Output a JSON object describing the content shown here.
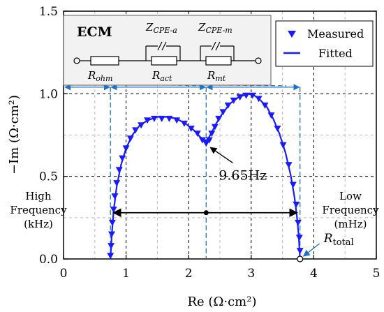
{
  "chart_data": {
    "type": "scatter",
    "xlabel": "Re (Ω·cm²)",
    "ylabel": "−Im (Ω·cm²)",
    "xlim": [
      0,
      5
    ],
    "ylim": [
      0,
      1.5
    ],
    "xticks": [
      0,
      1,
      2,
      3,
      4,
      5
    ],
    "yticks": [
      0.0,
      0.5,
      1.0,
      1.5
    ],
    "xtick_labels": [
      "0",
      "1",
      "2",
      "3",
      "4",
      "5"
    ],
    "ytick_labels": [
      "0.0",
      "0.5",
      "1.0",
      "1.5"
    ],
    "grid": true,
    "legend_position": "top-right",
    "series": [
      {
        "name": "Measured",
        "marker": "triangle-down",
        "color": "#1a1aff",
        "x": [
          0.75,
          0.76,
          0.77,
          0.78,
          0.8,
          0.82,
          0.85,
          0.89,
          0.94,
          1.0,
          1.07,
          1.15,
          1.24,
          1.34,
          1.45,
          1.57,
          1.69,
          1.81,
          1.93,
          2.04,
          2.14,
          2.22,
          2.28,
          2.33,
          2.37,
          2.42,
          2.48,
          2.55,
          2.63,
          2.72,
          2.82,
          2.92,
          3.02,
          3.12,
          3.22,
          3.32,
          3.42,
          3.51,
          3.6,
          3.67,
          3.72,
          3.75,
          3.77,
          3.78
        ],
        "y": [
          0.02,
          0.08,
          0.15,
          0.22,
          0.3,
          0.38,
          0.46,
          0.54,
          0.61,
          0.67,
          0.73,
          0.78,
          0.81,
          0.84,
          0.85,
          0.85,
          0.85,
          0.84,
          0.82,
          0.79,
          0.76,
          0.72,
          0.7,
          0.72,
          0.76,
          0.8,
          0.85,
          0.89,
          0.93,
          0.96,
          0.98,
          0.99,
          0.99,
          0.97,
          0.93,
          0.87,
          0.79,
          0.69,
          0.57,
          0.45,
          0.33,
          0.22,
          0.13,
          0.05
        ]
      },
      {
        "name": "Fitted",
        "line": "solid",
        "color": "#1a1aff",
        "x": [
          0.75,
          0.77,
          0.8,
          0.85,
          0.92,
          1.0,
          1.1,
          1.22,
          1.35,
          1.5,
          1.65,
          1.8,
          1.95,
          2.08,
          2.18,
          2.25,
          2.3,
          2.36,
          2.44,
          2.54,
          2.66,
          2.8,
          2.95,
          3.05,
          3.15,
          3.25,
          3.35,
          3.45,
          3.55,
          3.63,
          3.69,
          3.73,
          3.76,
          3.78
        ],
        "y": [
          0.0,
          0.14,
          0.29,
          0.44,
          0.57,
          0.67,
          0.75,
          0.81,
          0.84,
          0.86,
          0.86,
          0.85,
          0.82,
          0.78,
          0.74,
          0.72,
          0.72,
          0.76,
          0.82,
          0.88,
          0.94,
          0.98,
          1.0,
          0.99,
          0.96,
          0.92,
          0.85,
          0.76,
          0.64,
          0.51,
          0.38,
          0.26,
          0.14,
          0.0
        ]
      }
    ],
    "annotations": {
      "ecm_title": "ECM",
      "r_ohm": "R",
      "r_ohm_sub": "ohm",
      "r_act": "R",
      "r_act_sub": "act",
      "r_mt": "R",
      "r_mt_sub": "mt",
      "z_cpe_a": "Z",
      "z_cpe_a_sub": "CPE-a",
      "z_cpe_m": "Z",
      "z_cpe_m_sub": "CPE-m",
      "freq_marker": "9.65Hz",
      "high_freq": [
        "High",
        "Frequency",
        "(kHz)"
      ],
      "low_freq": [
        "Low",
        "Frequency",
        "(mHz)"
      ],
      "r_total": "R",
      "r_total_sub": "total",
      "x_ohm": 0.75,
      "x_mid": 2.28,
      "x_total": 3.78,
      "y_arrow": 0.28,
      "y_bracket": 1.04,
      "x_freq_point": 2.28,
      "y_freq_point": 0.7
    }
  }
}
